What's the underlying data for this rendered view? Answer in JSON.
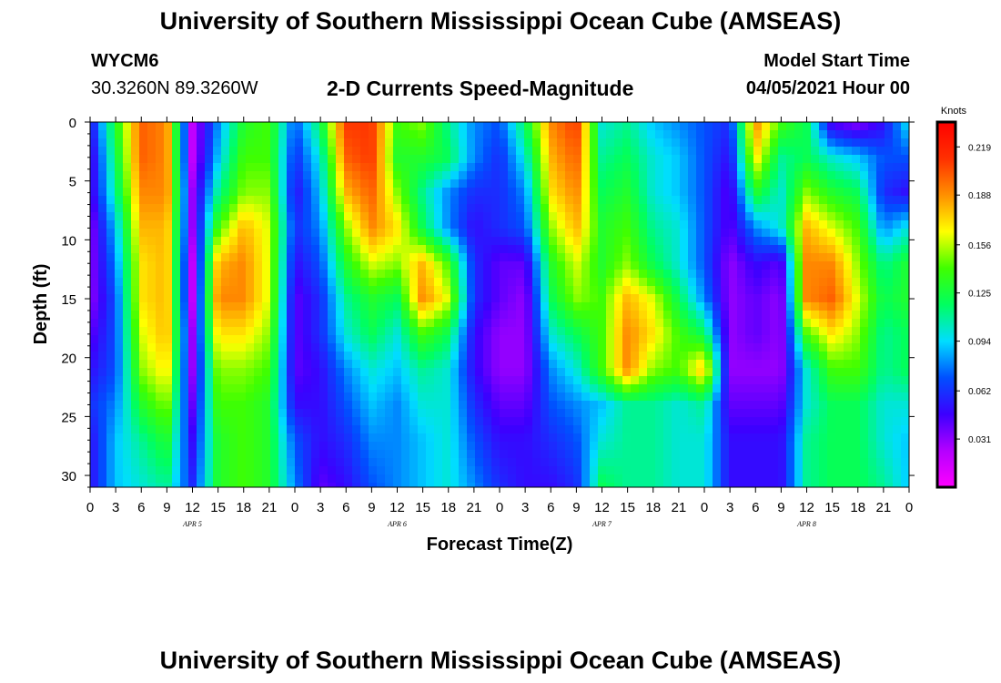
{
  "header": {
    "title": "University of Southern Mississippi Ocean Cube (AMSEAS)",
    "station_id": "WYCM6",
    "coordinates": "30.3260N  89.3260W",
    "plot_title": "2-D Currents Speed-Magnitude",
    "model_start_label": "Model Start Time",
    "model_start_value": "04/05/2021 Hour 00"
  },
  "footer": {
    "title": "University of Southern Mississippi Ocean Cube (AMSEAS)"
  },
  "chart_data": {
    "type": "heatmap",
    "xlabel": "Forecast Time(Z)",
    "ylabel": "Depth (ft)",
    "x_tick_labels": [
      "0",
      "3",
      "6",
      "9",
      "12",
      "15",
      "18",
      "21",
      "0",
      "3",
      "6",
      "9",
      "12",
      "15",
      "18",
      "21",
      "0",
      "3",
      "6",
      "9",
      "12",
      "15",
      "18",
      "21",
      "0",
      "3",
      "6",
      "9",
      "12",
      "15",
      "18",
      "21",
      "0"
    ],
    "day_labels": [
      "APR 5",
      "APR 6",
      "APR 7",
      "APR 8"
    ],
    "y_ticks": [
      0,
      5,
      10,
      15,
      20,
      25,
      30
    ],
    "ylim": [
      31,
      0
    ],
    "xlim_hours": [
      0,
      96
    ],
    "colorbar": {
      "unit": "Knots",
      "ticks": [
        "0.219",
        "0.188",
        "0.156",
        "0.125",
        "0.094",
        "0.062",
        "0.031"
      ],
      "range": [
        0,
        0.235
      ],
      "colors": [
        "#ff00ff",
        "#b400ff",
        "#3c00ff",
        "#0050ff",
        "#00ddff",
        "#00ff60",
        "#40ff00",
        "#ffff00",
        "#ff9000",
        "#ff3000",
        "#ff0000"
      ]
    },
    "depths": [
      0,
      3,
      6,
      9,
      12,
      15,
      18,
      21,
      24,
      27,
      31
    ],
    "hours": [
      0,
      3,
      6,
      9,
      12,
      15,
      18,
      21,
      24,
      27,
      30,
      33,
      36,
      39,
      42,
      45,
      48,
      51,
      54,
      57,
      60,
      63,
      66,
      69,
      72,
      75,
      78,
      81,
      84,
      87,
      90,
      93,
      96
    ],
    "values": [
      [
        0.05,
        0.13,
        0.2,
        0.19,
        0.02,
        0.08,
        0.13,
        0.14,
        0.07,
        0.12,
        0.21,
        0.21,
        0.14,
        0.15,
        0.11,
        0.08,
        0.07,
        0.12,
        0.19,
        0.21,
        0.1,
        0.11,
        0.09,
        0.08,
        0.07,
        0.06,
        0.19,
        0.14,
        0.12,
        0.04,
        0.03,
        0.05,
        0.1
      ],
      [
        0.04,
        0.12,
        0.2,
        0.19,
        0.02,
        0.09,
        0.14,
        0.14,
        0.06,
        0.1,
        0.2,
        0.21,
        0.13,
        0.13,
        0.12,
        0.08,
        0.06,
        0.1,
        0.18,
        0.2,
        0.11,
        0.12,
        0.1,
        0.09,
        0.07,
        0.05,
        0.17,
        0.11,
        0.12,
        0.1,
        0.09,
        0.07,
        0.07
      ],
      [
        0.04,
        0.11,
        0.19,
        0.19,
        0.03,
        0.11,
        0.15,
        0.15,
        0.05,
        0.09,
        0.18,
        0.2,
        0.15,
        0.11,
        0.08,
        0.06,
        0.06,
        0.08,
        0.17,
        0.19,
        0.12,
        0.13,
        0.1,
        0.09,
        0.07,
        0.04,
        0.13,
        0.1,
        0.15,
        0.13,
        0.12,
        0.06,
        0.05
      ],
      [
        0.03,
        0.09,
        0.18,
        0.18,
        0.03,
        0.14,
        0.18,
        0.16,
        0.06,
        0.08,
        0.15,
        0.19,
        0.17,
        0.12,
        0.08,
        0.05,
        0.06,
        0.07,
        0.15,
        0.18,
        0.13,
        0.14,
        0.11,
        0.1,
        0.07,
        0.04,
        0.08,
        0.1,
        0.18,
        0.16,
        0.14,
        0.08,
        0.1
      ],
      [
        0.03,
        0.08,
        0.17,
        0.18,
        0.02,
        0.18,
        0.19,
        0.16,
        0.05,
        0.07,
        0.13,
        0.16,
        0.15,
        0.18,
        0.14,
        0.06,
        0.04,
        0.04,
        0.13,
        0.16,
        0.13,
        0.15,
        0.12,
        0.1,
        0.07,
        0.03,
        0.05,
        0.04,
        0.19,
        0.19,
        0.15,
        0.11,
        0.13
      ],
      [
        0.03,
        0.07,
        0.17,
        0.18,
        0.02,
        0.19,
        0.19,
        0.16,
        0.04,
        0.06,
        0.11,
        0.13,
        0.12,
        0.19,
        0.16,
        0.06,
        0.04,
        0.03,
        0.12,
        0.15,
        0.14,
        0.18,
        0.16,
        0.12,
        0.08,
        0.03,
        0.04,
        0.03,
        0.19,
        0.2,
        0.16,
        0.12,
        0.13
      ],
      [
        0.04,
        0.07,
        0.16,
        0.18,
        0.03,
        0.17,
        0.17,
        0.15,
        0.04,
        0.06,
        0.1,
        0.12,
        0.1,
        0.14,
        0.12,
        0.05,
        0.03,
        0.03,
        0.1,
        0.12,
        0.14,
        0.19,
        0.17,
        0.14,
        0.12,
        0.03,
        0.04,
        0.03,
        0.14,
        0.17,
        0.15,
        0.11,
        0.12
      ],
      [
        0.05,
        0.07,
        0.15,
        0.17,
        0.03,
        0.15,
        0.15,
        0.14,
        0.04,
        0.05,
        0.08,
        0.1,
        0.09,
        0.11,
        0.1,
        0.05,
        0.03,
        0.03,
        0.08,
        0.1,
        0.14,
        0.19,
        0.15,
        0.14,
        0.18,
        0.03,
        0.03,
        0.03,
        0.1,
        0.14,
        0.14,
        0.11,
        0.12
      ],
      [
        0.06,
        0.08,
        0.13,
        0.15,
        0.04,
        0.14,
        0.14,
        0.13,
        0.05,
        0.05,
        0.07,
        0.09,
        0.08,
        0.1,
        0.1,
        0.06,
        0.04,
        0.04,
        0.07,
        0.08,
        0.09,
        0.11,
        0.11,
        0.1,
        0.11,
        0.04,
        0.04,
        0.04,
        0.1,
        0.12,
        0.12,
        0.1,
        0.1
      ],
      [
        0.05,
        0.09,
        0.11,
        0.13,
        0.05,
        0.13,
        0.14,
        0.13,
        0.07,
        0.05,
        0.06,
        0.08,
        0.08,
        0.09,
        0.1,
        0.07,
        0.05,
        0.05,
        0.06,
        0.07,
        0.1,
        0.11,
        0.11,
        0.1,
        0.1,
        0.05,
        0.05,
        0.05,
        0.11,
        0.12,
        0.12,
        0.1,
        0.09
      ],
      [
        0.05,
        0.09,
        0.1,
        0.11,
        0.06,
        0.13,
        0.14,
        0.13,
        0.08,
        0.04,
        0.05,
        0.07,
        0.08,
        0.09,
        0.1,
        0.08,
        0.06,
        0.05,
        0.05,
        0.06,
        0.12,
        0.11,
        0.11,
        0.1,
        0.1,
        0.05,
        0.05,
        0.05,
        0.11,
        0.12,
        0.12,
        0.11,
        0.09
      ]
    ]
  }
}
